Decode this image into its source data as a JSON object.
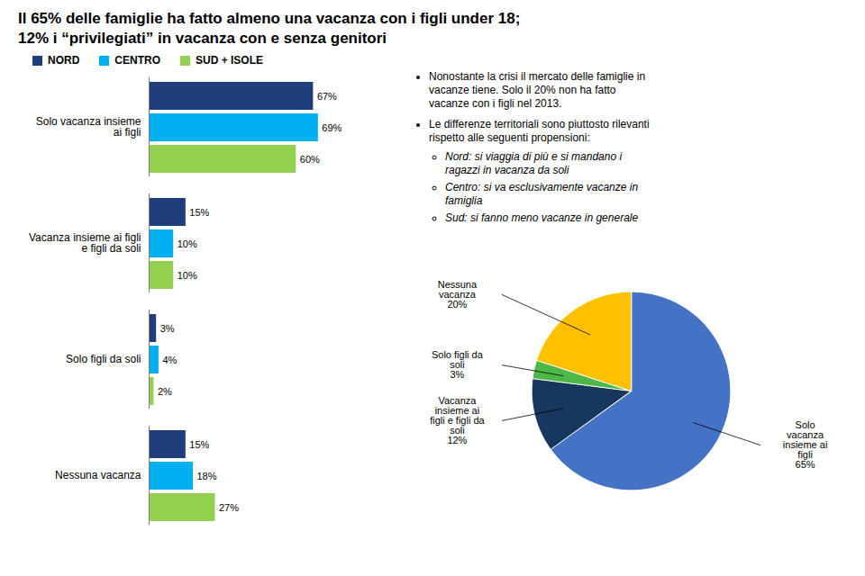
{
  "chart_data": [
    {
      "type": "bar",
      "orientation": "horizontal",
      "title": "Il 65% delle famiglie ha fatto almeno una vacanza con i figli under 18;",
      "subtitle": "12% i “privilegiati” in vacanza con e senza genitori",
      "categories": [
        "Solo vacanza insieme\nai figli",
        "Vacanza insieme ai figli\ne figli da soli",
        "Solo figli da soli",
        "Nessuna vacanza"
      ],
      "series": [
        {
          "name": "NORD",
          "color": "#1F3D7A",
          "values": [
            67,
            15,
            3,
            15
          ],
          "value_labels": [
            "67%",
            "15%",
            "3%",
            "15%"
          ]
        },
        {
          "name": "CENTRO",
          "color": "#00B0F0",
          "values": [
            69,
            10,
            4,
            18
          ],
          "value_labels": [
            "69%",
            "10%",
            "4%",
            "18%"
          ]
        },
        {
          "name": "SUD + ISOLE",
          "color": "#92D050",
          "values": [
            60,
            10,
            2,
            27
          ],
          "value_labels": [
            "60%",
            "10%",
            "2%",
            "27%"
          ]
        }
      ],
      "xlim": [
        0,
        90
      ],
      "tick_labels": false,
      "data_labels": true,
      "legend": "top-left",
      "annotations": [
        {
          "text": "Nonostante la crisi il mercato delle famiglie in\nvacanze tiene. Solo il 20% non ha fatto\nvacanze con i figli nel 2013."
        },
        {
          "text": "Le differenze territoriali sono piuttosto rilevanti\nrispetto alle seguenti propensioni:",
          "items": [
            "Nord: si viaggia di più e si mandano i\nragazzi in vacanza da soli",
            "Centro: si va esclusivamente vacanze in\nfamiglia",
            "Sud: si fanno meno vacanze in generale"
          ]
        }
      ]
    },
    {
      "type": "pie",
      "categories": [
        "Solo\nvacanza\ninsieme ai\nfigli",
        "Vacanza\ninsieme ai\nfigli e figli da\nsoli",
        "Solo figli da\nsoli",
        "Nessuna\nvacanza"
      ],
      "values": [
        65,
        12,
        3,
        20
      ],
      "value_labels": [
        "65%",
        "12%",
        "3%",
        "20%"
      ],
      "colors": [
        "#4472C4",
        "#17375E",
        "#4DB848",
        "#FFC000"
      ],
      "data_labels": true
    }
  ]
}
